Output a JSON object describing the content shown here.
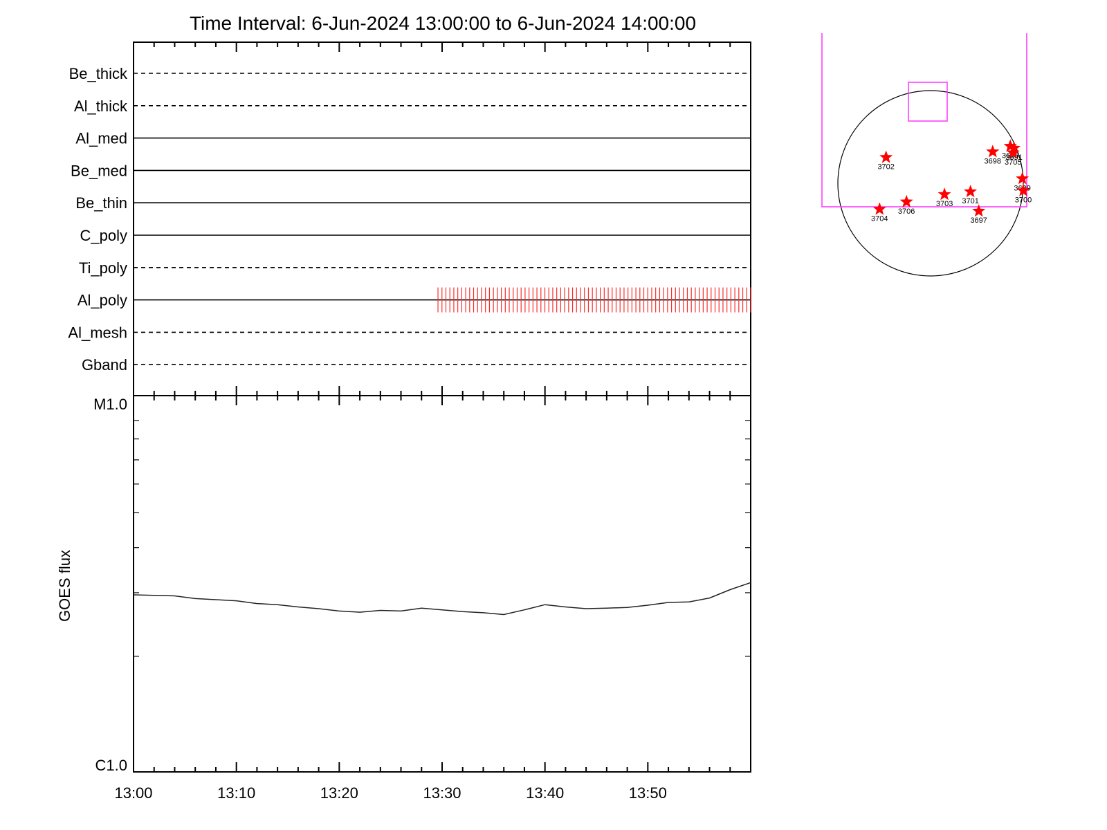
{
  "title": "Time Interval:  6-Jun-2024 13:00:00 to  6-Jun-2024 14:00:00",
  "colors": {
    "axes": "#000000",
    "flux_line": "#222222",
    "event_ticks": "#ff2a2a",
    "fov_box": "#ff33ff",
    "star": "#ff0000"
  },
  "chart_data": [
    {
      "type": "timeline",
      "x_range": [
        "13:00",
        "14:00"
      ],
      "rows": [
        {
          "label": "Be_thick",
          "style": "dashed"
        },
        {
          "label": "Al_thick",
          "style": "dashed"
        },
        {
          "label": "Al_med",
          "style": "solid"
        },
        {
          "label": "Be_med",
          "style": "solid"
        },
        {
          "label": "Be_thin",
          "style": "solid"
        },
        {
          "label": "C_poly",
          "style": "solid"
        },
        {
          "label": "Ti_poly",
          "style": "dashed"
        },
        {
          "label": "Al_poly",
          "style": "solid"
        },
        {
          "label": "Al_mesh",
          "style": "dashed"
        },
        {
          "label": "Gband",
          "style": "dashed"
        }
      ],
      "events": [
        {
          "row": "Al_poly",
          "start_min": 29.6,
          "end_min": 60.0,
          "count": 80
        }
      ]
    },
    {
      "type": "line",
      "ylabel": "GOES flux",
      "yscale": "log",
      "ylim_labels": [
        "C1.0",
        "M1.0"
      ],
      "ylim": [
        1e-06,
        1e-05
      ],
      "xlim_min": [
        0,
        60
      ],
      "x_ticks": [
        "13:00",
        "13:10",
        "13:20",
        "13:30",
        "13:40",
        "13:50"
      ],
      "series": [
        {
          "x_min": [
            0,
            2,
            4,
            6,
            8,
            10,
            12,
            14,
            16,
            18,
            20,
            22,
            24,
            26,
            28,
            30,
            32,
            34,
            36,
            38,
            40,
            42,
            44,
            46,
            48,
            50,
            52,
            54,
            56,
            58,
            60
          ],
          "values": [
            2.96e-06,
            2.95e-06,
            2.94e-06,
            2.89e-06,
            2.87e-06,
            2.85e-06,
            2.8e-06,
            2.78e-06,
            2.74e-06,
            2.71e-06,
            2.67e-06,
            2.65e-06,
            2.68e-06,
            2.67e-06,
            2.72e-06,
            2.69e-06,
            2.66e-06,
            2.64e-06,
            2.61e-06,
            2.69e-06,
            2.78e-06,
            2.74e-06,
            2.71e-06,
            2.72e-06,
            2.73e-06,
            2.77e-06,
            2.82e-06,
            2.83e-06,
            2.9e-06,
            3.06e-06,
            3.2e-06
          ]
        }
      ]
    },
    {
      "type": "scatter",
      "description_free": true,
      "points": [
        {
          "label": "3702",
          "x": -0.48,
          "y": 0.28
        },
        {
          "label": "3698",
          "x": 0.67,
          "y": 0.34
        },
        {
          "label": "3696",
          "x": 0.86,
          "y": 0.4
        },
        {
          "label": "3691",
          "x": 0.9,
          "y": 0.38
        },
        {
          "label": "3705",
          "x": 0.89,
          "y": 0.33
        },
        {
          "label": "3699",
          "x": 0.99,
          "y": 0.05
        },
        {
          "label": "3700",
          "x": 1.0,
          "y": -0.08
        },
        {
          "label": "3701",
          "x": 0.43,
          "y": -0.09
        },
        {
          "label": "3703",
          "x": 0.15,
          "y": -0.12
        },
        {
          "label": "3706",
          "x": -0.26,
          "y": -0.2
        },
        {
          "label": "3704",
          "x": -0.55,
          "y": -0.28
        },
        {
          "label": "3697",
          "x": 0.52,
          "y": -0.3
        }
      ]
    }
  ]
}
